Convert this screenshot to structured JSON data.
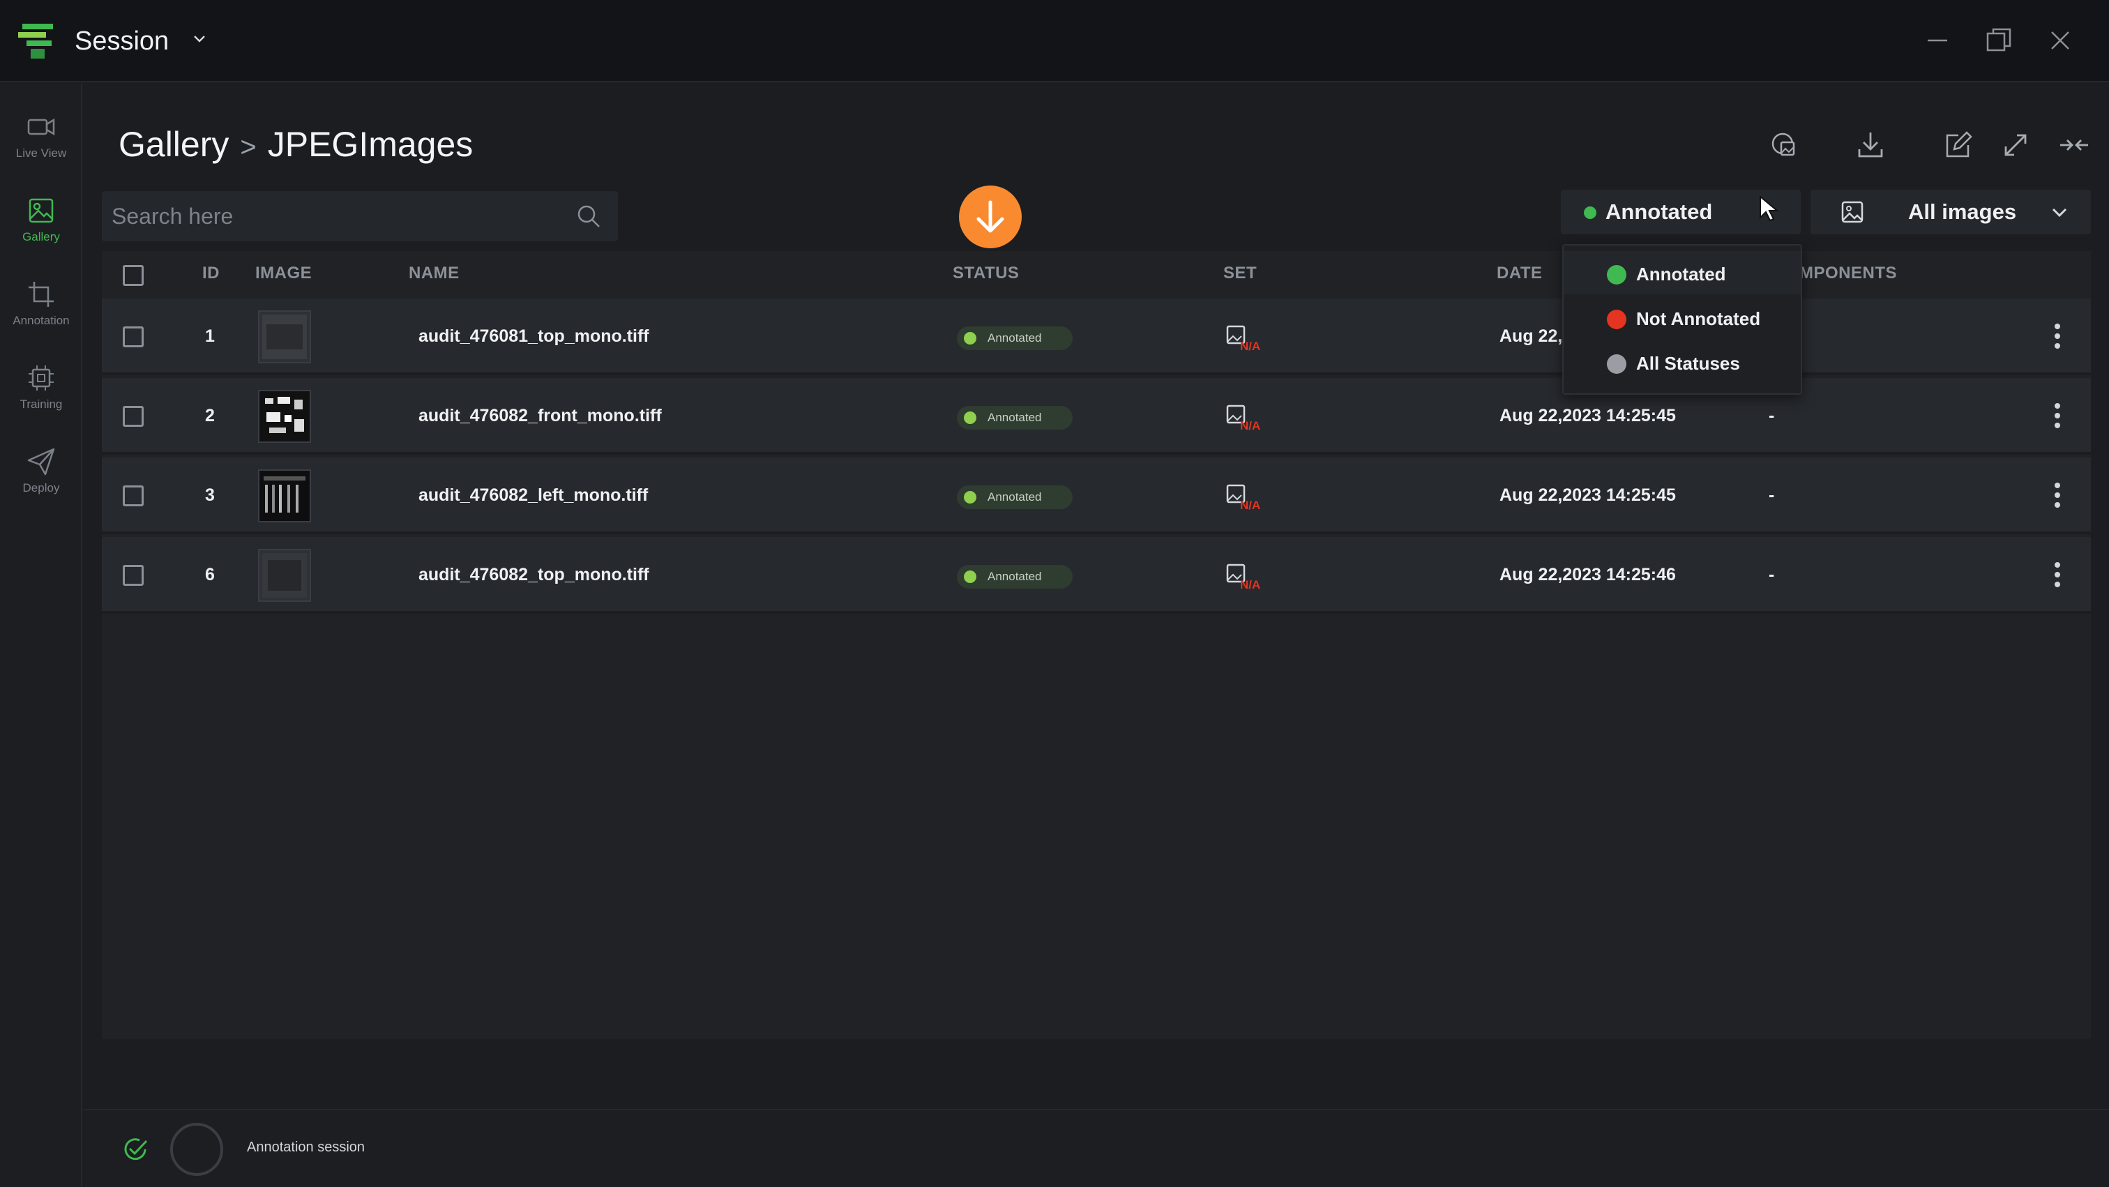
{
  "app": {
    "title": "Session",
    "icons": {
      "logo": "app-logo-icon",
      "chevron": "chevron-down-icon",
      "minimize": "minimize-icon",
      "restore": "restore-icon",
      "close": "close-icon"
    }
  },
  "sidebar": {
    "items": [
      {
        "label": "Live View",
        "icon": "video-camera-icon",
        "active": false
      },
      {
        "label": "Gallery",
        "icon": "image-gallery-icon",
        "active": true
      },
      {
        "label": "Annotation",
        "icon": "crop-icon",
        "active": false
      },
      {
        "label": "Training",
        "icon": "chip-icon",
        "active": false
      },
      {
        "label": "Deploy",
        "icon": "send-icon",
        "active": false
      }
    ]
  },
  "breadcrumb": {
    "root": "Gallery",
    "separator": ">",
    "current": "JPEGImages"
  },
  "toolbar": {
    "icons": [
      "sync-images-icon",
      "download-icon",
      "edit-icon",
      "expand-icon",
      "collapse-icon"
    ]
  },
  "search": {
    "placeholder": "Search here",
    "value": ""
  },
  "status_filter": {
    "selected": "Annotated",
    "accent": "#3fb950"
  },
  "image_filter": {
    "selected": "All images"
  },
  "table": {
    "headers": {
      "id": "ID",
      "image": "IMAGE",
      "name": "NAME",
      "status": "STATUS",
      "set": "SET",
      "date": "DATE",
      "components": "MPONENTS"
    },
    "rows": [
      {
        "id": "1",
        "name": "audit_476081_top_mono.tiff",
        "status": "Annotated",
        "set": "N/A",
        "date": "Aug 22,",
        "components": ""
      },
      {
        "id": "2",
        "name": "audit_476082_front_mono.tiff",
        "status": "Annotated",
        "set": "N/A",
        "date": "Aug 22,2023 14:25:45",
        "components": "-"
      },
      {
        "id": "3",
        "name": "audit_476082_left_mono.tiff",
        "status": "Annotated",
        "set": "N/A",
        "date": "Aug 22,2023 14:25:45",
        "components": "-"
      },
      {
        "id": "6",
        "name": "audit_476082_top_mono.tiff",
        "status": "Annotated",
        "set": "N/A",
        "date": "Aug 22,2023 14:25:46",
        "components": "-"
      }
    ]
  },
  "status_dropdown": {
    "options": [
      {
        "label": "Annotated",
        "color": "#3fb950"
      },
      {
        "label": "Not Annotated",
        "color": "#e5341f"
      },
      {
        "label": "All Statuses",
        "color": "#9a9ea4"
      }
    ]
  },
  "footer": {
    "text": "Annotation session"
  },
  "colors": {
    "accent_green": "#3fb950",
    "fab_orange": "#f98a30",
    "na_red": "#e5341f"
  }
}
